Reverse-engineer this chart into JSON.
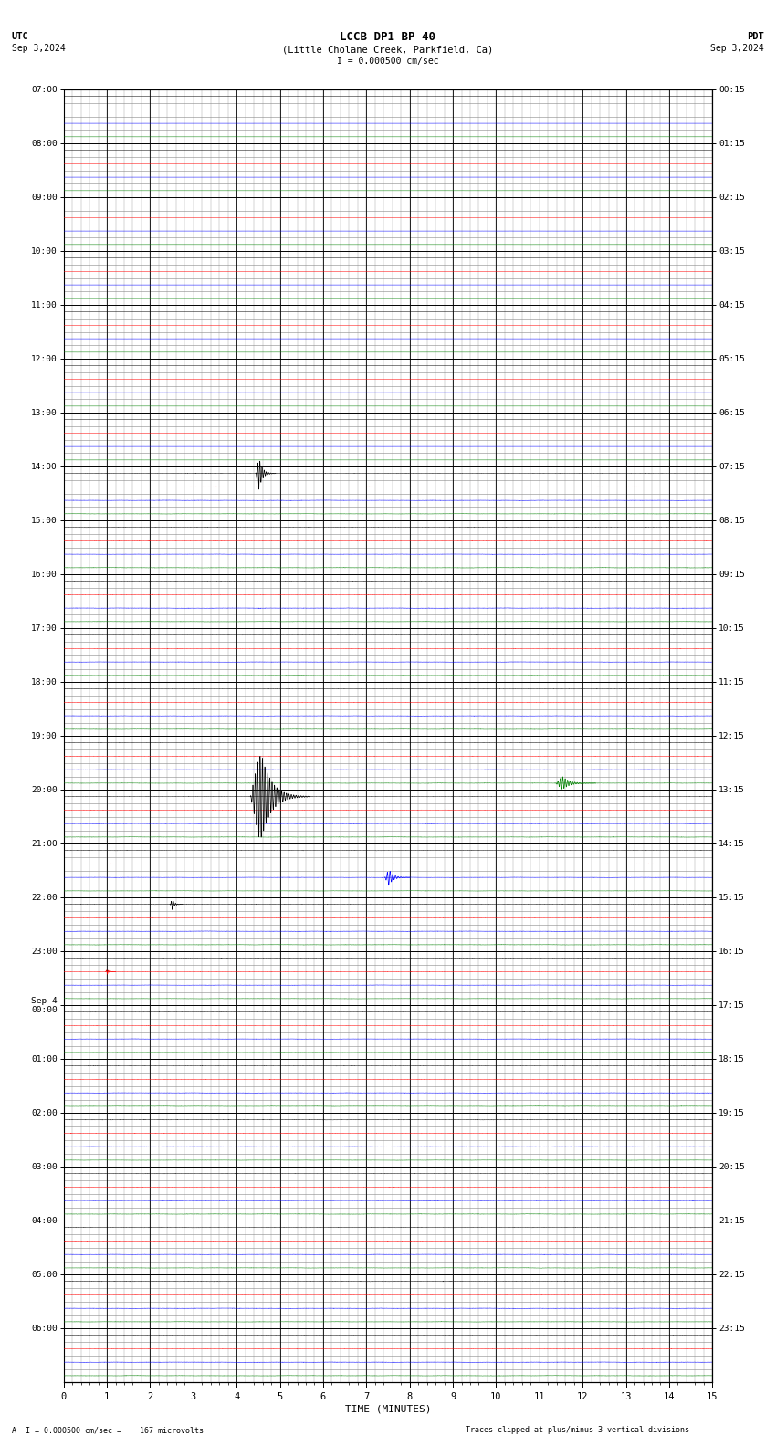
{
  "title_line1": "LCCB DP1 BP 40",
  "title_line2": "(Little Cholane Creek, Parkfield, Ca)",
  "scale_label": "I = 0.000500 cm/sec",
  "utc_label": "UTC",
  "utc_date": "Sep 3,2024",
  "pdt_label": "PDT",
  "pdt_date": "Sep 3,2024",
  "bottom_left": "A  I = 0.000500 cm/sec =    167 microvolts",
  "bottom_right": "Traces clipped at plus/minus 3 vertical divisions",
  "xlabel": "TIME (MINUTES)",
  "fig_width": 8.5,
  "fig_height": 15.84,
  "dpi": 100,
  "bg_color": "#ffffff",
  "grid_color": "#888888",
  "major_grid_color": "#000000",
  "trace_colors": [
    "#000000",
    "#ff0000",
    "#0000ff",
    "#008000"
  ],
  "num_rows": 24,
  "minutes_per_row": 15,
  "x_ticks": [
    0,
    1,
    2,
    3,
    4,
    5,
    6,
    7,
    8,
    9,
    10,
    11,
    12,
    13,
    14,
    15
  ],
  "left_labels_utc": [
    "07:00",
    "08:00",
    "09:00",
    "10:00",
    "11:00",
    "12:00",
    "13:00",
    "14:00",
    "15:00",
    "16:00",
    "17:00",
    "18:00",
    "19:00",
    "20:00",
    "21:00",
    "22:00",
    "23:00",
    "Sep 4\n00:00",
    "01:00",
    "02:00",
    "03:00",
    "04:00",
    "05:00",
    "06:00"
  ],
  "right_labels_pdt": [
    "00:15",
    "01:15",
    "02:15",
    "03:15",
    "04:15",
    "05:15",
    "06:15",
    "07:15",
    "08:15",
    "09:15",
    "10:15",
    "11:15",
    "12:15",
    "13:15",
    "14:15",
    "15:15",
    "16:15",
    "17:15",
    "18:15",
    "19:15",
    "20:15",
    "21:15",
    "22:15",
    "23:15"
  ],
  "noise_seed": 42,
  "row_active_from": 7,
  "noise_quiet": 0.003,
  "noise_active": 0.018,
  "earthquake_events": [
    {
      "row": 7,
      "minute": 4.5,
      "color_idx": 0,
      "amplitude": 1.2,
      "duration": 0.4,
      "freq": 20
    },
    {
      "row": 12,
      "minute": 11.5,
      "color_idx": 3,
      "amplitude": 0.5,
      "duration": 0.8,
      "freq": 18
    },
    {
      "row": 13,
      "minute": 4.5,
      "color_idx": 0,
      "amplitude": 3.5,
      "duration": 1.2,
      "freq": 18
    },
    {
      "row": 14,
      "minute": 7.5,
      "color_idx": 2,
      "amplitude": 0.6,
      "duration": 0.5,
      "freq": 16
    },
    {
      "row": 15,
      "minute": 2.5,
      "color_idx": 0,
      "amplitude": 0.4,
      "duration": 0.25,
      "freq": 20
    },
    {
      "row": 16,
      "minute": 1.0,
      "color_idx": 1,
      "amplitude": 0.2,
      "duration": 0.2,
      "freq": 20
    }
  ]
}
